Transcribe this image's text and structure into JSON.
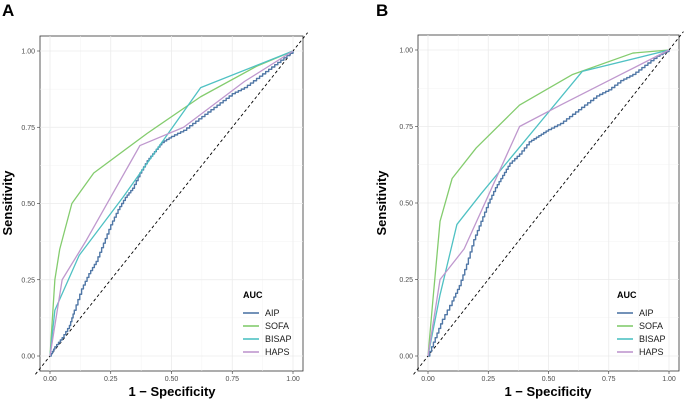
{
  "panels": [
    {
      "letter": "A",
      "xlabel": "1 − Specificity",
      "ylabel": "Sensitivity",
      "legend_title": "AUC"
    },
    {
      "letter": "B",
      "xlabel": "1 − Specificity",
      "ylabel": "Sensitivity",
      "legend_title": "AUC"
    }
  ],
  "colors": {
    "AIP": "#5077A6",
    "SOFA": "#84CC6E",
    "BISAP": "#4FC1C3",
    "HAPS": "#BF98CE",
    "reference": "#000000",
    "grid": "#ebebeb"
  },
  "chart_data": [
    {
      "type": "line",
      "title": "A",
      "xlabel": "1 − Specificity",
      "ylabel": "Sensitivity",
      "xlim": [
        0,
        1
      ],
      "ylim": [
        0,
        1
      ],
      "xticks": [
        "0.00",
        "0.25",
        "0.50",
        "0.75",
        "1.00"
      ],
      "yticks": [
        "0.00",
        "0.25",
        "0.50",
        "0.75",
        "1.00"
      ],
      "grid": true,
      "legend_title": "AUC",
      "legend_position": "bottom-right",
      "reference_line": "diagonal dashed",
      "series": [
        {
          "name": "AIP",
          "step": true,
          "points": [
            [
              0,
              0
            ],
            [
              0.02,
              0.03
            ],
            [
              0.05,
              0.06
            ],
            [
              0.08,
              0.1
            ],
            [
              0.1,
              0.15
            ],
            [
              0.13,
              0.22
            ],
            [
              0.16,
              0.27
            ],
            [
              0.19,
              0.31
            ],
            [
              0.22,
              0.37
            ],
            [
              0.25,
              0.43
            ],
            [
              0.28,
              0.48
            ],
            [
              0.31,
              0.52
            ],
            [
              0.34,
              0.55
            ],
            [
              0.37,
              0.6
            ],
            [
              0.4,
              0.64
            ],
            [
              0.43,
              0.67
            ],
            [
              0.46,
              0.7
            ],
            [
              0.5,
              0.72
            ],
            [
              0.55,
              0.74
            ],
            [
              0.6,
              0.77
            ],
            [
              0.65,
              0.8
            ],
            [
              0.7,
              0.83
            ],
            [
              0.75,
              0.86
            ],
            [
              0.8,
              0.88
            ],
            [
              0.85,
              0.91
            ],
            [
              0.9,
              0.94
            ],
            [
              0.95,
              0.97
            ],
            [
              1,
              1
            ]
          ]
        },
        {
          "name": "SOFA",
          "step": false,
          "points": [
            [
              0,
              0
            ],
            [
              0.02,
              0.25
            ],
            [
              0.04,
              0.35
            ],
            [
              0.09,
              0.5
            ],
            [
              0.18,
              0.6
            ],
            [
              0.4,
              0.73
            ],
            [
              0.62,
              0.85
            ],
            [
              0.85,
              0.95
            ],
            [
              1,
              1
            ]
          ]
        },
        {
          "name": "BISAP",
          "step": false,
          "points": [
            [
              0,
              0
            ],
            [
              0.02,
              0.15
            ],
            [
              0.12,
              0.33
            ],
            [
              0.3,
              0.52
            ],
            [
              0.62,
              0.88
            ],
            [
              1,
              1
            ]
          ]
        },
        {
          "name": "HAPS",
          "step": false,
          "points": [
            [
              0,
              0
            ],
            [
              0.05,
              0.25
            ],
            [
              0.15,
              0.38
            ],
            [
              0.37,
              0.69
            ],
            [
              0.55,
              0.75
            ],
            [
              0.8,
              0.9
            ],
            [
              1,
              1
            ]
          ]
        }
      ]
    },
    {
      "type": "line",
      "title": "B",
      "xlabel": "1 − Specificity",
      "ylabel": "Sensitivity",
      "xlim": [
        0,
        1
      ],
      "ylim": [
        0,
        1
      ],
      "xticks": [
        "0.00",
        "0.25",
        "0.50",
        "0.75",
        "1.00"
      ],
      "yticks": [
        "0.00",
        "0.25",
        "0.50",
        "0.75",
        "1.00"
      ],
      "grid": true,
      "legend_title": "AUC",
      "legend_position": "bottom-right",
      "reference_line": "diagonal dashed",
      "series": [
        {
          "name": "AIP",
          "step": true,
          "points": [
            [
              0,
              0
            ],
            [
              0.03,
              0.06
            ],
            [
              0.06,
              0.12
            ],
            [
              0.1,
              0.18
            ],
            [
              0.13,
              0.23
            ],
            [
              0.16,
              0.3
            ],
            [
              0.19,
              0.38
            ],
            [
              0.22,
              0.44
            ],
            [
              0.25,
              0.5
            ],
            [
              0.28,
              0.55
            ],
            [
              0.31,
              0.59
            ],
            [
              0.34,
              0.63
            ],
            [
              0.38,
              0.66
            ],
            [
              0.42,
              0.7
            ],
            [
              0.46,
              0.72
            ],
            [
              0.5,
              0.74
            ],
            [
              0.55,
              0.76
            ],
            [
              0.6,
              0.79
            ],
            [
              0.65,
              0.82
            ],
            [
              0.7,
              0.85
            ],
            [
              0.75,
              0.87
            ],
            [
              0.8,
              0.9
            ],
            [
              0.85,
              0.92
            ],
            [
              0.9,
              0.95
            ],
            [
              0.95,
              0.98
            ],
            [
              1,
              1
            ]
          ]
        },
        {
          "name": "SOFA",
          "step": false,
          "points": [
            [
              0,
              0
            ],
            [
              0.02,
              0.18
            ],
            [
              0.05,
              0.44
            ],
            [
              0.1,
              0.58
            ],
            [
              0.2,
              0.68
            ],
            [
              0.38,
              0.82
            ],
            [
              0.6,
              0.92
            ],
            [
              0.85,
              0.99
            ],
            [
              1,
              1
            ]
          ]
        },
        {
          "name": "BISAP",
          "step": false,
          "points": [
            [
              0,
              0
            ],
            [
              0.05,
              0.2
            ],
            [
              0.12,
              0.43
            ],
            [
              0.22,
              0.53
            ],
            [
              0.64,
              0.93
            ],
            [
              1,
              1
            ]
          ]
        },
        {
          "name": "HAPS",
          "step": false,
          "points": [
            [
              0,
              0
            ],
            [
              0.05,
              0.25
            ],
            [
              0.15,
              0.35
            ],
            [
              0.38,
              0.75
            ],
            [
              0.55,
              0.82
            ],
            [
              0.8,
              0.92
            ],
            [
              1,
              1
            ]
          ]
        }
      ]
    }
  ]
}
